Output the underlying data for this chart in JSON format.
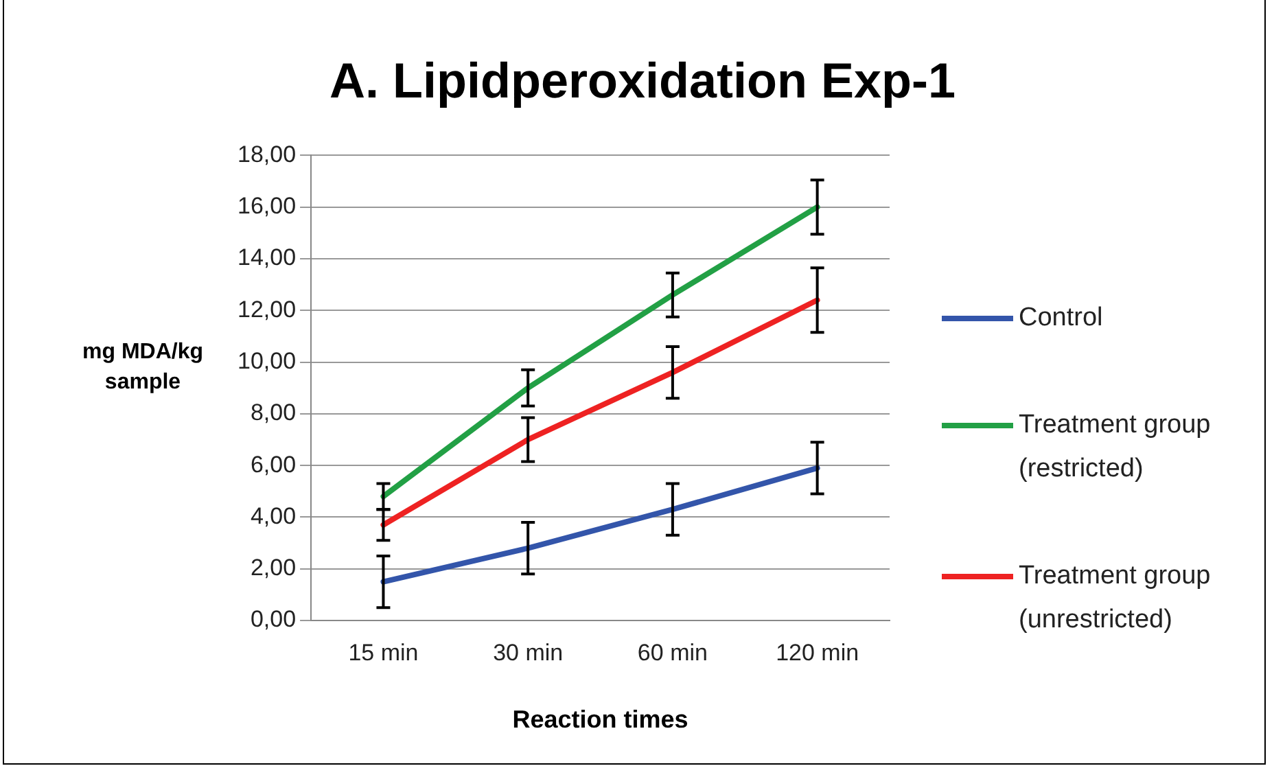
{
  "chart_data": {
    "type": "line",
    "title": "A. Lipidperoxidation Exp-1",
    "xlabel": "Reaction times",
    "ylabel": "mg MDA/kg sample",
    "categories": [
      "15 min",
      "30 min",
      "60 min",
      "120 min"
    ],
    "series": [
      {
        "name": "Control",
        "color": "#3355aa",
        "values": [
          1.5,
          2.8,
          4.3,
          5.9
        ],
        "errors": [
          1.0,
          1.0,
          1.0,
          1.0
        ]
      },
      {
        "name": "Treatment group (restricted)",
        "color": "#22a045",
        "values": [
          4.8,
          9.0,
          12.6,
          16.0
        ],
        "errors": [
          0.5,
          0.7,
          0.85,
          1.05
        ]
      },
      {
        "name": "Treatment group (unrestricted)",
        "color": "#ee2222",
        "values": [
          3.7,
          7.0,
          9.6,
          12.4
        ],
        "errors": [
          0.6,
          0.85,
          1.0,
          1.25
        ]
      }
    ],
    "ylim": [
      0,
      18
    ],
    "yticks": [
      {
        "value": 0,
        "label": "0,00"
      },
      {
        "value": 2,
        "label": "2,00"
      },
      {
        "value": 4,
        "label": "4,00"
      },
      {
        "value": 6,
        "label": "6,00"
      },
      {
        "value": 8,
        "label": "8,00"
      },
      {
        "value": 10,
        "label": "10,00"
      },
      {
        "value": 12,
        "label": "12,00"
      },
      {
        "value": 14,
        "label": "14,00"
      },
      {
        "value": 16,
        "label": "16,00"
      },
      {
        "value": 18,
        "label": "18,00"
      }
    ],
    "grid": "y",
    "legend": "right",
    "marker": "none",
    "line_style": "solid"
  }
}
